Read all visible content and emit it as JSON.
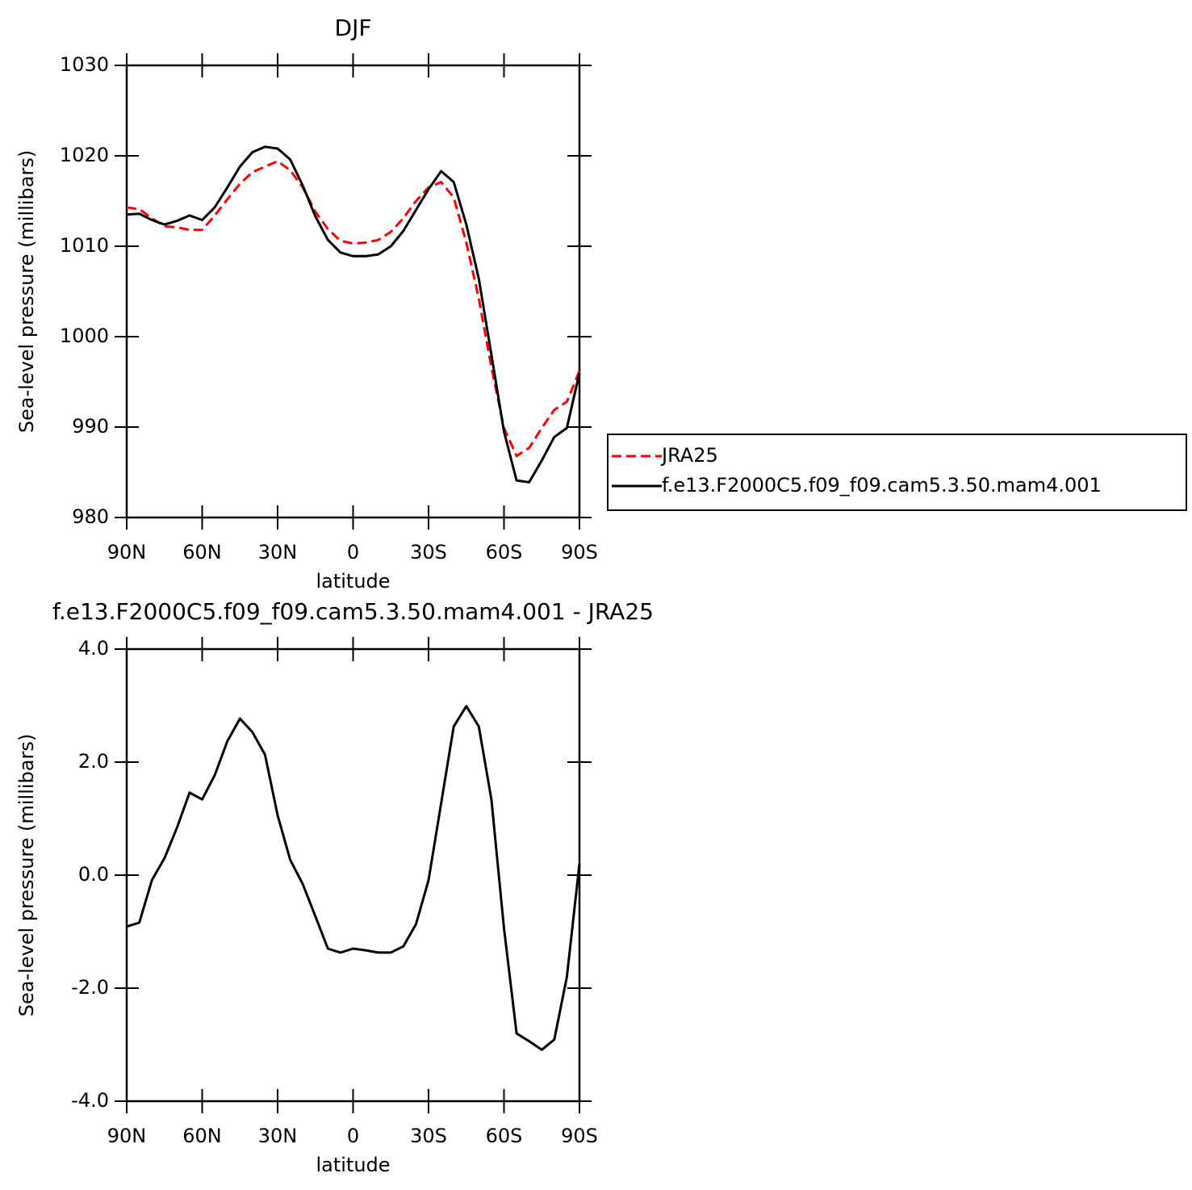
{
  "chart_data": [
    {
      "type": "line",
      "title": "DJF",
      "xlabel": "latitude",
      "ylabel": "Sea-level pressure (millibars)",
      "x": [
        90,
        85,
        80,
        75,
        70,
        65,
        60,
        55,
        50,
        45,
        40,
        35,
        30,
        25,
        20,
        15,
        10,
        5,
        0,
        -5,
        -10,
        -15,
        -20,
        -25,
        -30,
        -35,
        -40,
        -45,
        -50,
        -55,
        -60,
        -65,
        -70,
        -75,
        -80,
        -85,
        -90
      ],
      "series": [
        {
          "name": "JRA25",
          "color": "#ff0000",
          "style": "dashed",
          "values": [
            1014.3,
            1014.1,
            1013.1,
            1012.2,
            1012.1,
            1011.8,
            1011.8,
            1013.4,
            1015.2,
            1016.9,
            1018.2,
            1018.8,
            1019.4,
            1018.4,
            1016.5,
            1013.8,
            1011.9,
            1010.6,
            1010.3,
            1010.4,
            1010.7,
            1011.6,
            1013.1,
            1015.0,
            1016.5,
            1017.1,
            1015.4,
            1010.4,
            1004.2,
            996.6,
            989.9,
            986.8,
            987.7,
            989.9,
            991.9,
            992.8,
            996.2
          ]
        },
        {
          "name": "f.e13.F2000C5.f09_f09.cam5.3.50.mam4.001",
          "color": "#000000",
          "style": "solid",
          "values": [
            1013.5,
            1013.6,
            1012.9,
            1012.4,
            1012.8,
            1013.4,
            1012.9,
            1014.3,
            1016.5,
            1018.8,
            1020.4,
            1021.0,
            1020.8,
            1019.6,
            1016.7,
            1013.3,
            1010.7,
            1009.3,
            1008.9,
            1008.9,
            1009.1,
            1010.0,
            1011.7,
            1014.0,
            1016.3,
            1018.3,
            1017.1,
            1012.4,
            1006.4,
            998.0,
            989.5,
            984.1,
            983.9,
            986.3,
            988.9,
            989.9,
            996.0
          ]
        }
      ],
      "xlim": [
        90,
        -90
      ],
      "xticks": [
        {
          "value": 90,
          "label": "90N"
        },
        {
          "value": 60,
          "label": "60N"
        },
        {
          "value": 30,
          "label": "30N"
        },
        0,
        {
          "value": -30,
          "label": "30S"
        },
        {
          "value": -60,
          "label": "60S"
        },
        {
          "value": -90,
          "label": "90S"
        }
      ],
      "ylim": [
        980,
        1030
      ],
      "yticks": [
        980,
        990,
        1000,
        1010,
        1020,
        1030
      ],
      "legend": "right"
    },
    {
      "type": "line",
      "title": "f.e13.F2000C5.f09_f09.cam5.3.50.mam4.001 - JRA25",
      "xlabel": "latitude",
      "ylabel": "Sea-level pressure (millibars)",
      "x": [
        90,
        85,
        80,
        75,
        70,
        65,
        60,
        55,
        50,
        45,
        40,
        35,
        30,
        25,
        20,
        15,
        10,
        5,
        0,
        -5,
        -10,
        -15,
        -20,
        -25,
        -30,
        -35,
        -40,
        -45,
        -50,
        -55,
        -60,
        -65,
        -70,
        -75,
        -80,
        -85,
        -90
      ],
      "values": [
        -0.91,
        -0.84,
        -0.09,
        0.3,
        0.84,
        1.46,
        1.34,
        1.77,
        2.37,
        2.77,
        2.53,
        2.13,
        1.06,
        0.27,
        -0.16,
        -0.73,
        -1.3,
        -1.37,
        -1.3,
        -1.33,
        -1.37,
        -1.37,
        -1.26,
        -0.87,
        -0.09,
        1.27,
        2.63,
        2.99,
        2.63,
        1.34,
        -0.94,
        -2.8,
        -2.94,
        -3.09,
        -2.91,
        -1.8,
        0.2
      ],
      "color": "#000000",
      "style": "solid",
      "xlim": [
        90,
        -90
      ],
      "xticks": [
        {
          "value": 90,
          "label": "90N"
        },
        {
          "value": 60,
          "label": "60N"
        },
        {
          "value": 30,
          "label": "30N"
        },
        0,
        {
          "value": -30,
          "label": "30S"
        },
        {
          "value": -60,
          "label": "60S"
        },
        {
          "value": -90,
          "label": "90S"
        }
      ],
      "ylim": [
        -4,
        4
      ],
      "yticks": [
        {
          "value": -4,
          "label": "-4.0"
        },
        {
          "value": -2,
          "label": "-2.0"
        },
        {
          "value": 0,
          "label": "0.0"
        },
        {
          "value": 2,
          "label": "2.0"
        },
        {
          "value": 4,
          "label": "4.0"
        }
      ]
    }
  ]
}
